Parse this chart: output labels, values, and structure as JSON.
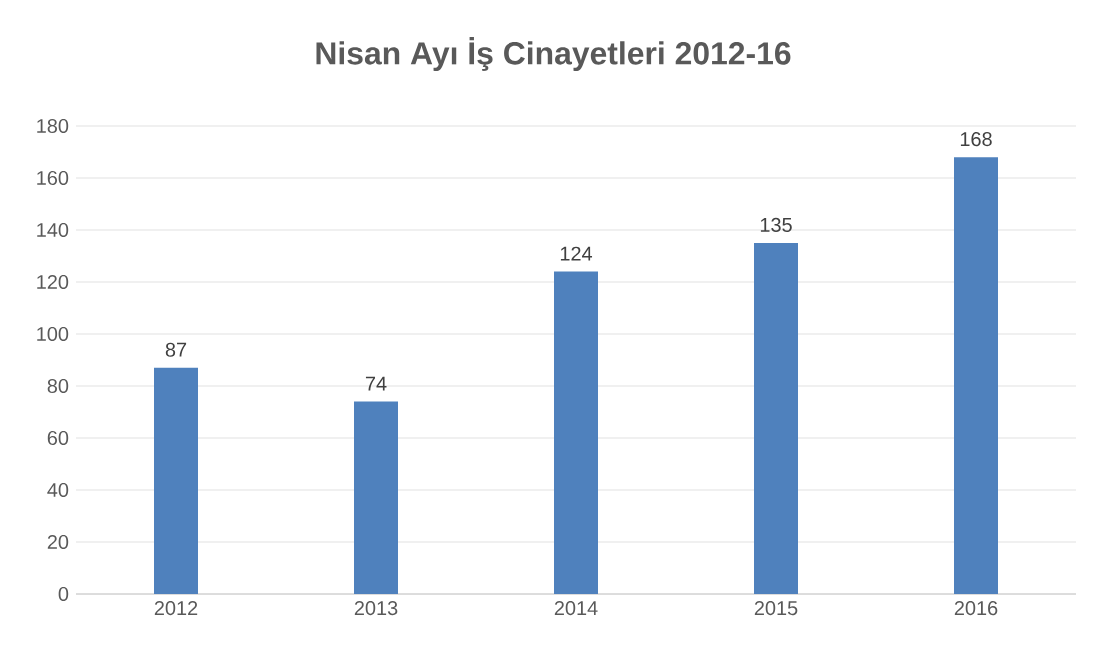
{
  "chart_data": {
    "type": "bar",
    "title": "Nisan Ayı İş Cinayetleri 2012-16",
    "categories": [
      "2012",
      "2013",
      "2014",
      "2015",
      "2016"
    ],
    "values": [
      87,
      74,
      124,
      135,
      168
    ],
    "color": "#4f81bd",
    "ylim": [
      0,
      180
    ],
    "yticks": [
      0,
      20,
      40,
      60,
      80,
      100,
      120,
      140,
      160,
      180
    ],
    "grid": "y",
    "data_labels": true
  }
}
